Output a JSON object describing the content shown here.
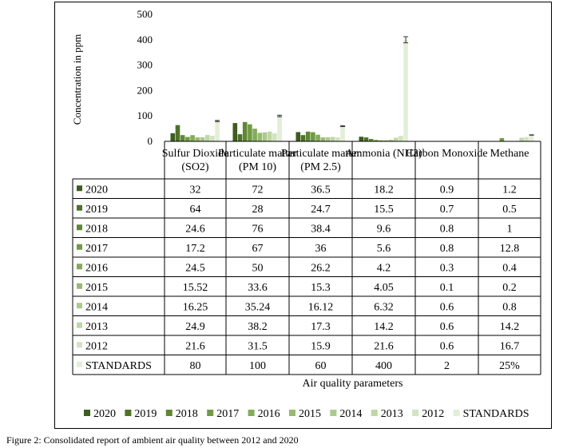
{
  "chart_data": {
    "type": "bar",
    "ylabel": "Concentration in ppm",
    "xlabel": "Air quality parameters",
    "ylim": [
      0,
      500
    ],
    "yticks": [
      "0",
      "100",
      "200",
      "300",
      "400",
      "500"
    ],
    "categories": [
      {
        "line1": "Sulfur Dioxide",
        "line2": "(SO2)"
      },
      {
        "line1": "Particulate matter",
        "line2": "(PM 10)"
      },
      {
        "line1": "Particulate matter",
        "line2": "(PM 2.5)"
      },
      {
        "line1": "Ammonia (NH3)",
        "line2": ""
      },
      {
        "line1": "Carbon Monoxide",
        "line2": ""
      },
      {
        "line1": "Methane",
        "line2": ""
      }
    ],
    "series": [
      {
        "name": "2020",
        "color": "#3d5c1f",
        "values": [
          32,
          72,
          36.5,
          18.2,
          0.9,
          1.2
        ],
        "labels": [
          "32",
          "72",
          "36.5",
          "18.2",
          "0.9",
          "1.2"
        ]
      },
      {
        "name": "2019",
        "color": "#4e7228",
        "values": [
          64,
          28,
          24.7,
          15.5,
          0.7,
          0.5
        ],
        "labels": [
          "64",
          "28",
          "24.7",
          "15.5",
          "0.7",
          "0.5"
        ]
      },
      {
        "name": "2018",
        "color": "#5f8733",
        "values": [
          24.6,
          76,
          38.4,
          9.6,
          0.8,
          1
        ],
        "labels": [
          "24.6",
          "76",
          "38.4",
          "9.6",
          "0.8",
          "1"
        ]
      },
      {
        "name": "2017",
        "color": "#709a44",
        "values": [
          17.2,
          67,
          36,
          5.6,
          0.8,
          12.8
        ],
        "labels": [
          "17.2",
          "67",
          "36",
          "5.6",
          "0.8",
          "12.8"
        ]
      },
      {
        "name": "2016",
        "color": "#83ab58",
        "values": [
          24.5,
          50,
          26.2,
          4.2,
          0.3,
          0.4
        ],
        "labels": [
          "24.5",
          "50",
          "26.2",
          "4.2",
          "0.3",
          "0.4"
        ]
      },
      {
        "name": "2015",
        "color": "#97ba70",
        "values": [
          15.52,
          33.6,
          15.3,
          4.05,
          0.1,
          0.2
        ],
        "labels": [
          "15.52",
          "33.6",
          "15.3",
          "4.05",
          "0.1",
          "0.2"
        ]
      },
      {
        "name": "2014",
        "color": "#abc98b",
        "values": [
          16.25,
          35.24,
          16.12,
          6.32,
          0.6,
          0.8
        ],
        "labels": [
          "16.25",
          "35.24",
          "16.12",
          "6.32",
          "0.6",
          "0.8"
        ]
      },
      {
        "name": "2013",
        "color": "#bfd7a5",
        "values": [
          24.9,
          38.2,
          17.3,
          14.2,
          0.6,
          14.2
        ],
        "labels": [
          "24.9",
          "38.2",
          "17.3",
          "14.2",
          "0.6",
          "14.2"
        ]
      },
      {
        "name": "2012",
        "color": "#d2e3bf",
        "values": [
          21.6,
          31.5,
          15.9,
          21.6,
          0.6,
          16.7
        ],
        "labels": [
          "21.6",
          "31.5",
          "15.9",
          "21.6",
          "0.6",
          "16.7"
        ]
      },
      {
        "name": "STANDARDS",
        "color": "#e3eed8",
        "values": [
          80,
          100,
          60,
          400,
          2,
          25
        ],
        "labels": [
          "80",
          "100",
          "60",
          "400",
          "2",
          "25%"
        ]
      }
    ],
    "error_bars_on": "STANDARDS",
    "legend_position": "bottom",
    "grid": false
  },
  "caption": "Figure 2: Consolidated report of ambient air quality between 2012 and 2020"
}
